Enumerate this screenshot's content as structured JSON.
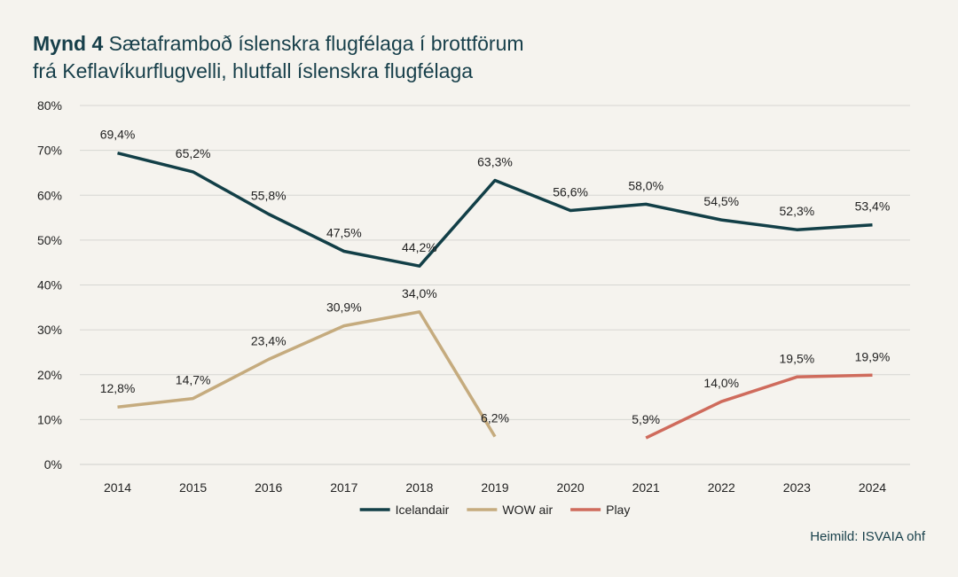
{
  "title": {
    "lead": "Mynd 4",
    "line1": "Sætaframboð íslenskra flugfélaga í brottförum",
    "line2": "frá Keflavíkurflugvelli, hlutfall íslenskra flugfélaga"
  },
  "source": "Heimild: ISVAIA ohf",
  "chart_data": {
    "type": "line",
    "title": "Sætaframboð íslenskra flugfélaga í brottförum frá Keflavíkurflugvelli, hlutfall íslenskra flugfélaga",
    "xlabel": "",
    "ylabel": "",
    "ylim": [
      0,
      80
    ],
    "yticks": [
      "0%",
      "10%",
      "20%",
      "30%",
      "40%",
      "50%",
      "60%",
      "70%",
      "80%"
    ],
    "grid": true,
    "legend_position": "bottom",
    "categories": [
      "2014",
      "2015",
      "2016",
      "2017",
      "2018",
      "2019",
      "2020",
      "2021",
      "2022",
      "2023",
      "2024"
    ],
    "series": [
      {
        "name": "Icelandair",
        "color": "#123f47",
        "values": [
          69.4,
          65.2,
          55.8,
          47.5,
          44.2,
          63.3,
          56.6,
          58.0,
          54.5,
          52.3,
          53.4
        ],
        "labels": [
          "69,4%",
          "65,2%",
          "55,8%",
          "47,5%",
          "44,2%",
          "63,3%",
          "56,6%",
          "58,0%",
          "54,5%",
          "52,3%",
          "53,4%"
        ]
      },
      {
        "name": "WOW air",
        "color": "#c5ab7e",
        "values": [
          12.8,
          14.7,
          23.4,
          30.9,
          34.0,
          6.2,
          null,
          null,
          null,
          null,
          null
        ],
        "labels": [
          "12,8%",
          "14,7%",
          "23,4%",
          "30,9%",
          "34,0%",
          "6,2%",
          null,
          null,
          null,
          null,
          null
        ]
      },
      {
        "name": "Play",
        "color": "#cf6b5c",
        "values": [
          null,
          null,
          null,
          null,
          null,
          null,
          null,
          5.9,
          14.0,
          19.5,
          19.9
        ],
        "labels": [
          null,
          null,
          null,
          null,
          null,
          null,
          null,
          "5,9%",
          "14,0%",
          "19,5%",
          "19,9%"
        ]
      }
    ]
  }
}
